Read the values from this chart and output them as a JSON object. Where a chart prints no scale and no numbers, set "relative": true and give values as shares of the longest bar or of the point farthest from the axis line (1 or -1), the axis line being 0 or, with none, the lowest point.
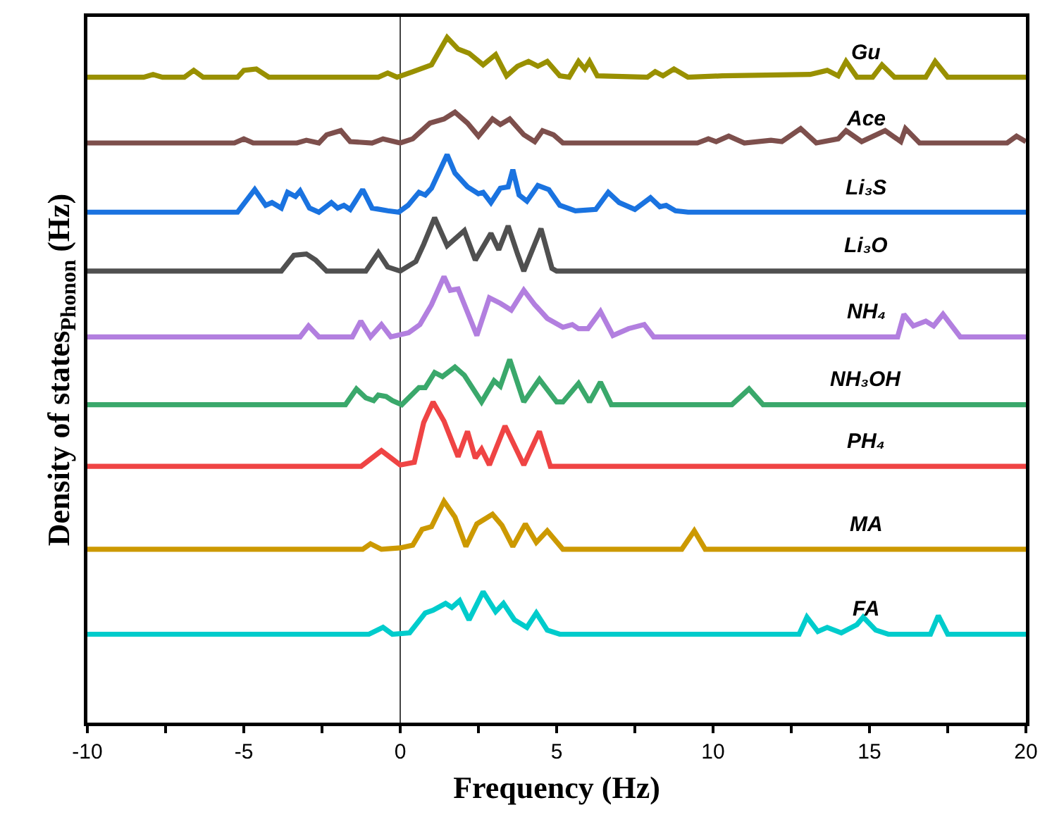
{
  "chart_data": {
    "type": "line",
    "relative": true,
    "xlabel": "Frequency (Hz)",
    "ylabel": "Density of states$_{Phonon}$ (Hz)",
    "xlim": [
      -10,
      20
    ],
    "xticks": [
      -10,
      {
        "value": -7.5,
        "label": null
      },
      -5,
      {
        "value": -2.5,
        "label": null
      },
      0,
      {
        "value": 2.5,
        "label": null
      },
      5,
      {
        "value": 7.5,
        "label": null
      },
      10,
      {
        "value": 12.5,
        "label": null
      },
      15,
      {
        "value": 17.5,
        "label": null
      },
      20
    ],
    "grid": false,
    "legend": false,
    "ref_lines": [
      {
        "axis": "x",
        "value": 0,
        "color": "#444444"
      }
    ],
    "series": [
      {
        "name": "Gu",
        "color": "#999000",
        "x": [
          -10,
          -8.2,
          -7.9,
          -7.6,
          -6.9,
          -6.6,
          -6.3,
          -5.2,
          -5.0,
          -4.6,
          -4.2,
          -0.7,
          -0.4,
          -0.1,
          0.4,
          1.0,
          1.5,
          1.85,
          2.2,
          2.65,
          3.05,
          3.4,
          3.75,
          4.1,
          4.4,
          4.7,
          5.1,
          5.4,
          5.7,
          5.9,
          6.05,
          6.3,
          7.9,
          8.15,
          8.4,
          8.75,
          9.2,
          10.3,
          13.1,
          13.65,
          14.0,
          14.25,
          14.6,
          15.1,
          15.4,
          15.8,
          16.8,
          17.1,
          17.5,
          20
        ],
        "values": [
          0.942,
          0.942,
          0.946,
          0.942,
          0.942,
          0.952,
          0.942,
          0.942,
          0.952,
          0.954,
          0.942,
          0.942,
          0.948,
          0.942,
          0.95,
          0.96,
          1.0,
          0.983,
          0.977,
          0.96,
          0.975,
          0.944,
          0.958,
          0.965,
          0.958,
          0.965,
          0.944,
          0.942,
          0.965,
          0.954,
          0.965,
          0.944,
          0.942,
          0.95,
          0.944,
          0.954,
          0.942,
          0.944,
          0.946,
          0.952,
          0.944,
          0.965,
          0.942,
          0.942,
          0.96,
          0.942,
          0.942,
          0.965,
          0.942,
          0.942
        ]
      },
      {
        "name": "Ace",
        "color": "#7d4f4c",
        "x": [
          -10,
          -5.3,
          -5.0,
          -4.7,
          -3.3,
          -3.0,
          -2.6,
          -2.35,
          -1.9,
          -1.6,
          -0.9,
          -0.55,
          0.0,
          0.4,
          0.95,
          1.4,
          1.75,
          2.15,
          2.5,
          2.95,
          3.2,
          3.5,
          3.95,
          4.3,
          4.55,
          4.9,
          5.2,
          9.5,
          9.85,
          10.1,
          10.5,
          11.0,
          11.85,
          12.2,
          12.8,
          13.3,
          14.0,
          14.25,
          14.75,
          15.5,
          16.0,
          16.15,
          16.6,
          19.4,
          19.7,
          20
        ],
        "values": [
          0.846,
          0.846,
          0.852,
          0.846,
          0.846,
          0.85,
          0.846,
          0.858,
          0.864,
          0.848,
          0.846,
          0.852,
          0.846,
          0.852,
          0.875,
          0.881,
          0.891,
          0.875,
          0.856,
          0.881,
          0.873,
          0.881,
          0.858,
          0.848,
          0.864,
          0.858,
          0.846,
          0.846,
          0.852,
          0.848,
          0.856,
          0.846,
          0.85,
          0.848,
          0.867,
          0.846,
          0.852,
          0.864,
          0.848,
          0.864,
          0.848,
          0.867,
          0.846,
          0.846,
          0.856,
          0.848
        ]
      },
      {
        "name": "Li₃S",
        "color": "#1a73e0",
        "x": [
          -10,
          -5.2,
          -4.65,
          -4.3,
          -4.1,
          -3.8,
          -3.6,
          -3.35,
          -3.2,
          -2.9,
          -2.6,
          -2.2,
          -2.0,
          -1.8,
          -1.6,
          -1.2,
          -0.9,
          -0.4,
          -0.05,
          0.25,
          0.6,
          0.8,
          1.0,
          1.5,
          1.75,
          2.15,
          2.5,
          2.65,
          2.9,
          3.2,
          3.45,
          3.6,
          3.8,
          4.05,
          4.4,
          4.75,
          5.1,
          5.6,
          6.25,
          6.65,
          7.0,
          7.5,
          8.0,
          8.3,
          8.5,
          8.8,
          9.2,
          20
        ],
        "values": [
          0.745,
          0.745,
          0.778,
          0.755,
          0.759,
          0.751,
          0.774,
          0.768,
          0.776,
          0.751,
          0.745,
          0.759,
          0.751,
          0.755,
          0.749,
          0.778,
          0.751,
          0.747,
          0.745,
          0.755,
          0.774,
          0.77,
          0.78,
          0.829,
          0.802,
          0.782,
          0.772,
          0.774,
          0.759,
          0.78,
          0.782,
          0.807,
          0.77,
          0.761,
          0.784,
          0.778,
          0.755,
          0.747,
          0.749,
          0.774,
          0.759,
          0.749,
          0.766,
          0.753,
          0.755,
          0.747,
          0.745,
          0.745
        ]
      },
      {
        "name": "Li₃O",
        "color": "#505050",
        "x": [
          -10,
          -3.8,
          -3.4,
          -3.0,
          -2.7,
          -2.35,
          -1.1,
          -0.7,
          -0.4,
          0.0,
          0.5,
          0.75,
          1.1,
          1.5,
          1.7,
          2.05,
          2.4,
          2.9,
          3.15,
          3.45,
          3.75,
          3.95,
          4.5,
          4.85,
          5.0,
          20
        ],
        "values": [
          0.659,
          0.659,
          0.682,
          0.684,
          0.675,
          0.659,
          0.659,
          0.686,
          0.665,
          0.659,
          0.673,
          0.698,
          0.737,
          0.696,
          0.704,
          0.718,
          0.675,
          0.714,
          0.69,
          0.725,
          0.684,
          0.659,
          0.721,
          0.663,
          0.659,
          0.659
        ]
      },
      {
        "name": "NH₄",
        "color": "#b27fdf",
        "x": [
          -10,
          -3.2,
          -2.93,
          -2.6,
          -1.53,
          -1.26,
          -0.95,
          -0.6,
          -0.3,
          0.27,
          0.63,
          1.0,
          1.4,
          1.6,
          1.85,
          2.45,
          2.85,
          3.2,
          3.55,
          3.95,
          4.3,
          4.7,
          5.2,
          5.5,
          5.7,
          6.0,
          6.4,
          6.8,
          7.3,
          7.8,
          8.1,
          15.9,
          16.1,
          16.4,
          16.8,
          17.05,
          17.35,
          17.9,
          20
        ],
        "values": [
          0.563,
          0.563,
          0.579,
          0.563,
          0.563,
          0.586,
          0.563,
          0.581,
          0.563,
          0.569,
          0.581,
          0.61,
          0.651,
          0.631,
          0.633,
          0.565,
          0.62,
          0.612,
          0.602,
          0.631,
          0.61,
          0.59,
          0.577,
          0.581,
          0.575,
          0.575,
          0.6,
          0.565,
          0.575,
          0.581,
          0.563,
          0.563,
          0.596,
          0.579,
          0.586,
          0.579,
          0.596,
          0.563,
          0.563
        ]
      },
      {
        "name": "NH₃OH",
        "color": "#3aa86b",
        "x": [
          -10,
          -1.75,
          -1.4,
          -1.1,
          -0.85,
          -0.7,
          -0.45,
          -0.25,
          0.05,
          0.6,
          0.8,
          1.1,
          1.35,
          1.75,
          2.05,
          2.6,
          3.0,
          3.2,
          3.5,
          3.95,
          4.45,
          5.0,
          5.2,
          5.7,
          6.05,
          6.4,
          6.75,
          10.6,
          11.15,
          11.6,
          20
        ],
        "values": [
          0.464,
          0.464,
          0.487,
          0.474,
          0.47,
          0.478,
          0.476,
          0.47,
          0.464,
          0.489,
          0.489,
          0.511,
          0.505,
          0.519,
          0.507,
          0.468,
          0.499,
          0.491,
          0.53,
          0.468,
          0.501,
          0.468,
          0.468,
          0.495,
          0.468,
          0.497,
          0.464,
          0.464,
          0.487,
          0.464,
          0.464
        ]
      },
      {
        "name": "PH₄",
        "color": "#ef4444",
        "x": [
          -10,
          -1.25,
          -0.6,
          0.0,
          0.45,
          0.75,
          1.05,
          1.4,
          1.85,
          2.15,
          2.4,
          2.6,
          2.85,
          3.35,
          3.95,
          4.45,
          4.8,
          20
        ],
        "values": [
          0.374,
          0.374,
          0.397,
          0.376,
          0.38,
          0.438,
          0.468,
          0.44,
          0.388,
          0.425,
          0.386,
          0.399,
          0.376,
          0.433,
          0.376,
          0.425,
          0.374,
          0.374
        ]
      },
      {
        "name": "MA",
        "color": "#cc9900",
        "x": [
          -10,
          -1.2,
          -0.95,
          -0.6,
          0.0,
          0.4,
          0.7,
          1.0,
          1.4,
          1.75,
          2.1,
          2.45,
          2.95,
          3.25,
          3.6,
          4.0,
          4.35,
          4.7,
          5.2,
          9.0,
          9.4,
          9.75,
          20
        ],
        "values": [
          0.253,
          0.253,
          0.261,
          0.253,
          0.255,
          0.259,
          0.282,
          0.286,
          0.323,
          0.3,
          0.257,
          0.29,
          0.304,
          0.288,
          0.257,
          0.29,
          0.263,
          0.28,
          0.253,
          0.253,
          0.28,
          0.253,
          0.253
        ]
      },
      {
        "name": "FA",
        "color": "#00cccc",
        "x": [
          -10,
          -1.0,
          -0.55,
          -0.25,
          0.3,
          0.8,
          1.05,
          1.45,
          1.65,
          1.9,
          2.2,
          2.65,
          3.05,
          3.3,
          3.65,
          4.05,
          4.35,
          4.7,
          5.1,
          12.75,
          13.0,
          13.35,
          13.65,
          14.1,
          14.6,
          14.8,
          15.2,
          15.6,
          16.95,
          17.2,
          17.5,
          20
        ],
        "values": [
          0.129,
          0.129,
          0.139,
          0.129,
          0.131,
          0.16,
          0.164,
          0.174,
          0.168,
          0.178,
          0.15,
          0.191,
          0.162,
          0.174,
          0.15,
          0.139,
          0.16,
          0.135,
          0.129,
          0.129,
          0.154,
          0.133,
          0.139,
          0.131,
          0.143,
          0.154,
          0.135,
          0.129,
          0.129,
          0.156,
          0.129,
          0.129
        ]
      }
    ]
  }
}
